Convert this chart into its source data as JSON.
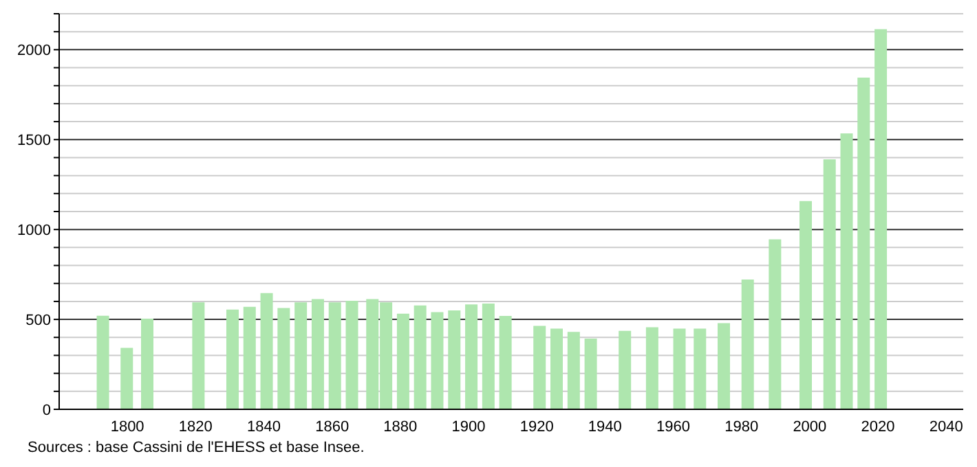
{
  "chart_data": {
    "type": "bar",
    "x": [
      1793,
      1800,
      1806,
      1821,
      1831,
      1836,
      1841,
      1846,
      1851,
      1856,
      1861,
      1866,
      1872,
      1876,
      1881,
      1886,
      1891,
      1896,
      1901,
      1906,
      1911,
      1921,
      1926,
      1931,
      1936,
      1946,
      1954,
      1962,
      1968,
      1975,
      1982,
      1990,
      1999,
      2006,
      2011,
      2016,
      2021
    ],
    "values": [
      520,
      342,
      504,
      595,
      555,
      570,
      646,
      563,
      595,
      613,
      595,
      603,
      613,
      595,
      532,
      578,
      540,
      550,
      583,
      588,
      519,
      464,
      449,
      431,
      393,
      436,
      456,
      449,
      449,
      479,
      722,
      945,
      1158,
      1390,
      1534,
      1845,
      2114
    ],
    "color": "#aee6ae",
    "xlim": [
      1780,
      2045
    ],
    "xticks": [
      1800,
      1820,
      1840,
      1860,
      1880,
      1900,
      1920,
      1940,
      1960,
      1980,
      2000,
      2020,
      2040
    ],
    "ylim": [
      0,
      2200
    ],
    "yticks": [
      0,
      {
        "value": 100,
        "label": null
      },
      {
        "value": 200,
        "label": null
      },
      {
        "value": 300,
        "label": null
      },
      {
        "value": 400,
        "label": null
      },
      500,
      {
        "value": 600,
        "label": null
      },
      {
        "value": 700,
        "label": null
      },
      {
        "value": 800,
        "label": null
      },
      {
        "value": 900,
        "label": null
      },
      1000,
      {
        "value": 1100,
        "label": null
      },
      {
        "value": 1200,
        "label": null
      },
      {
        "value": 1300,
        "label": null
      },
      {
        "value": 1400,
        "label": null
      },
      1500,
      {
        "value": 1600,
        "label": null
      },
      {
        "value": 1700,
        "label": null
      },
      {
        "value": 1800,
        "label": null
      },
      {
        "value": 1900,
        "label": null
      },
      2000,
      {
        "value": 2100,
        "label": null
      },
      {
        "value": 2200,
        "label": null
      }
    ],
    "grid": "y",
    "annotations": [
      "Sources : base Cassini de l'EHESS et base Insee."
    ]
  }
}
